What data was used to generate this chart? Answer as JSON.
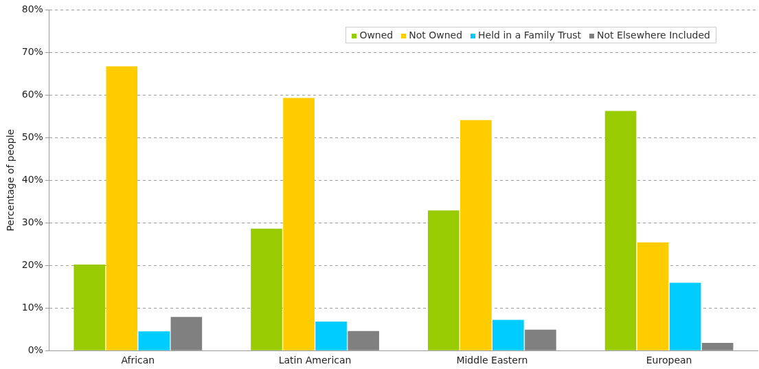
{
  "chart_data": {
    "type": "bar",
    "ylabel": "Percentage of people",
    "categories": [
      "African",
      "Latin American",
      "Middle Eastern",
      "European"
    ],
    "series": [
      {
        "name": "Owned",
        "color": "#99cc00",
        "values": [
          20.2,
          28.6,
          32.9,
          56.2
        ]
      },
      {
        "name": "Not Owned",
        "color": "#ffcc00",
        "values": [
          66.7,
          59.3,
          54.1,
          25.4
        ]
      },
      {
        "name": "Held in a Family Trust",
        "color": "#00ccff",
        "values": [
          4.5,
          6.8,
          7.2,
          15.9
        ]
      },
      {
        "name": "Not Elsewhere Included",
        "color": "#808080",
        "values": [
          7.9,
          4.6,
          4.9,
          1.8
        ]
      }
    ],
    "ylim": [
      0,
      80
    ],
    "yticks": [
      {
        "value": 0,
        "label": "0%"
      },
      {
        "value": 10,
        "label": "10%"
      },
      {
        "value": 20,
        "label": "20%"
      },
      {
        "value": 30,
        "label": "30%"
      },
      {
        "value": 40,
        "label": "40%"
      },
      {
        "value": 50,
        "label": "50%"
      },
      {
        "value": 60,
        "label": "60%"
      },
      {
        "value": 70,
        "label": "70%"
      },
      {
        "value": 80,
        "label": "80%"
      }
    ],
    "grid": "y",
    "legend": "top right"
  }
}
